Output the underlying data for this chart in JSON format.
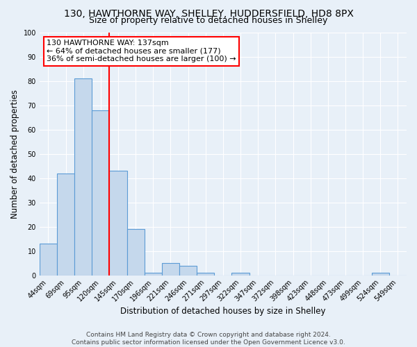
{
  "title": "130, HAWTHORNE WAY, SHELLEY, HUDDERSFIELD, HD8 8PX",
  "subtitle": "Size of property relative to detached houses in Shelley",
  "xlabel": "Distribution of detached houses by size in Shelley",
  "ylabel": "Number of detached properties",
  "bin_labels": [
    "44sqm",
    "69sqm",
    "95sqm",
    "120sqm",
    "145sqm",
    "170sqm",
    "196sqm",
    "221sqm",
    "246sqm",
    "271sqm",
    "297sqm",
    "322sqm",
    "347sqm",
    "372sqm",
    "398sqm",
    "423sqm",
    "448sqm",
    "473sqm",
    "499sqm",
    "524sqm",
    "549sqm"
  ],
  "bar_heights": [
    13,
    42,
    81,
    68,
    43,
    19,
    1,
    5,
    4,
    1,
    0,
    1,
    0,
    0,
    0,
    0,
    0,
    0,
    0,
    1,
    0
  ],
  "bar_color": "#c5d8ec",
  "bar_edge_color": "#5b9bd5",
  "vline_x": 3.5,
  "vline_color": "red",
  "annotation_text": "130 HAWTHORNE WAY: 137sqm\n← 64% of detached houses are smaller (177)\n36% of semi-detached houses are larger (100) →",
  "annotation_box_color": "white",
  "annotation_box_edge_color": "red",
  "ylim": [
    0,
    100
  ],
  "yticks": [
    0,
    10,
    20,
    30,
    40,
    50,
    60,
    70,
    80,
    90,
    100
  ],
  "footer_line1": "Contains HM Land Registry data © Crown copyright and database right 2024.",
  "footer_line2": "Contains public sector information licensed under the Open Government Licence v3.0.",
  "background_color": "#e8f0f8",
  "plot_background_color": "#e8f0f8",
  "grid_color": "white",
  "title_fontsize": 10,
  "subtitle_fontsize": 9,
  "axis_label_fontsize": 8.5,
  "tick_fontsize": 7,
  "footer_fontsize": 6.5
}
